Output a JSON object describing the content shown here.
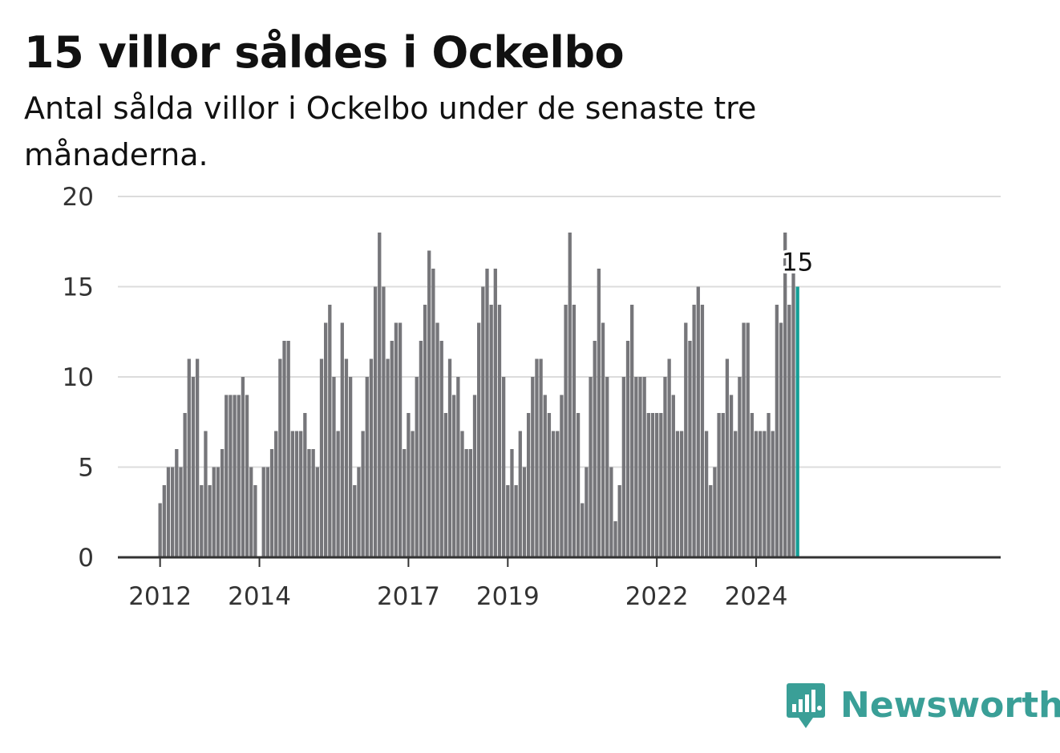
{
  "header": {
    "title": "15 villor såldes i Ockelbo",
    "subtitle": "Antal sålda villor i Ockelbo under de senaste tre månaderna."
  },
  "brand": {
    "name": "Newsworthy",
    "icon": "newsworthy-logo-icon",
    "color": "#3a9f97"
  },
  "chart_data": {
    "type": "bar",
    "title": "15 villor såldes i Ockelbo",
    "subtitle": "Antal sålda villor i Ockelbo under de senaste tre månaderna.",
    "xlabel": "",
    "ylabel": "",
    "ylim": [
      0,
      20
    ],
    "yticks": [
      0,
      5,
      10,
      15,
      20
    ],
    "grid": true,
    "legend": "none",
    "start": "2012-01",
    "xticks": [
      "2012",
      "2014",
      "2017",
      "2019",
      "2022",
      "2024"
    ],
    "bar_color": "#76767a",
    "highlight_color": "#139e96",
    "highlight_label": "15",
    "values": [
      3,
      4,
      5,
      5,
      6,
      5,
      8,
      11,
      10,
      11,
      4,
      7,
      4,
      5,
      5,
      6,
      9,
      9,
      9,
      9,
      10,
      9,
      5,
      4,
      0,
      5,
      5,
      6,
      7,
      11,
      12,
      12,
      7,
      7,
      7,
      8,
      6,
      6,
      5,
      11,
      13,
      14,
      10,
      7,
      13,
      11,
      10,
      4,
      5,
      7,
      10,
      11,
      15,
      18,
      15,
      11,
      12,
      13,
      13,
      6,
      8,
      7,
      10,
      12,
      14,
      17,
      16,
      13,
      12,
      8,
      11,
      9,
      10,
      7,
      6,
      6,
      9,
      13,
      15,
      16,
      14,
      16,
      14,
      10,
      4,
      6,
      4,
      7,
      5,
      8,
      10,
      11,
      11,
      9,
      8,
      7,
      7,
      9,
      14,
      18,
      14,
      8,
      3,
      5,
      10,
      12,
      16,
      13,
      10,
      5,
      2,
      4,
      10,
      12,
      14,
      10,
      10,
      10,
      8,
      8,
      8,
      8,
      10,
      11,
      9,
      7,
      7,
      13,
      12,
      14,
      15,
      14,
      7,
      4,
      5,
      8,
      8,
      11,
      9,
      7,
      10,
      13,
      13,
      8,
      7,
      7,
      7,
      8,
      7,
      14,
      13,
      18,
      14,
      16,
      15
    ]
  }
}
